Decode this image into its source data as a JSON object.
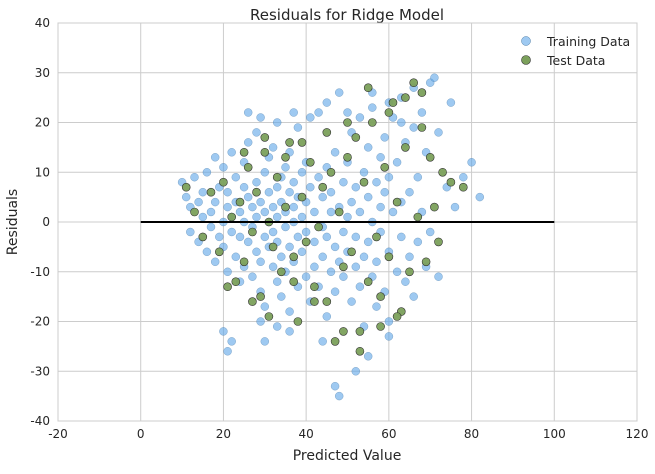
{
  "chart_data": {
    "type": "scatter",
    "title": "Residuals for Ridge Model",
    "xlabel": "Predicted Value",
    "ylabel": "Residuals",
    "xlim": [
      -20,
      120
    ],
    "ylim": [
      -40,
      40
    ],
    "xticks": [
      -20,
      0,
      20,
      40,
      60,
      80,
      100,
      120
    ],
    "yticks": [
      -40,
      -30,
      -20,
      -10,
      0,
      10,
      20,
      30,
      40
    ],
    "grid": true,
    "legend_position": "top-right",
    "reference_line": {
      "y": 0,
      "x_start": 0,
      "x_end": 100,
      "color": "#000000"
    },
    "series": [
      {
        "name": "Training Data",
        "color": "#5DA5E8",
        "points": [
          [
            10,
            8
          ],
          [
            11,
            5
          ],
          [
            12,
            3
          ],
          [
            12,
            -2
          ],
          [
            13,
            9
          ],
          [
            14,
            4
          ],
          [
            14,
            -4
          ],
          [
            15,
            1
          ],
          [
            15,
            6
          ],
          [
            16,
            -6
          ],
          [
            16,
            10
          ],
          [
            17,
            2
          ],
          [
            17,
            -1
          ],
          [
            18,
            13
          ],
          [
            18,
            -8
          ],
          [
            18,
            4
          ],
          [
            19,
            -3
          ],
          [
            19,
            7
          ],
          [
            20,
            0
          ],
          [
            20,
            11
          ],
          [
            20,
            -5
          ],
          [
            21,
            3
          ],
          [
            21,
            -10
          ],
          [
            21,
            6
          ],
          [
            22,
            -2
          ],
          [
            22,
            14
          ],
          [
            22,
            1
          ],
          [
            23,
            -7
          ],
          [
            23,
            9
          ],
          [
            23,
            4
          ],
          [
            24,
            -12
          ],
          [
            24,
            2
          ],
          [
            24,
            -3
          ],
          [
            25,
            7
          ],
          [
            25,
            -9
          ],
          [
            25,
            12
          ],
          [
            25,
            0
          ],
          [
            26,
            -4
          ],
          [
            26,
            5
          ],
          [
            26,
            16
          ],
          [
            27,
            -11
          ],
          [
            27,
            3
          ],
          [
            27,
            -1
          ],
          [
            28,
            8
          ],
          [
            28,
            -6
          ],
          [
            28,
            1
          ],
          [
            28,
            18
          ],
          [
            29,
            -14
          ],
          [
            29,
            4
          ],
          [
            29,
            -8
          ],
          [
            30,
            10
          ],
          [
            30,
            -3
          ],
          [
            30,
            2
          ],
          [
            30,
            -17
          ],
          [
            31,
            6
          ],
          [
            31,
            -5
          ],
          [
            31,
            13
          ],
          [
            31,
            0
          ],
          [
            32,
            -9
          ],
          [
            32,
            3
          ],
          [
            32,
            -2
          ],
          [
            32,
            15
          ],
          [
            33,
            -12
          ],
          [
            33,
            7
          ],
          [
            33,
            -4
          ],
          [
            33,
            1
          ],
          [
            34,
            9
          ],
          [
            34,
            -7
          ],
          [
            34,
            -15
          ],
          [
            34,
            4
          ],
          [
            35,
            -1
          ],
          [
            35,
            11
          ],
          [
            35,
            -10
          ],
          [
            35,
            2
          ],
          [
            36,
            6
          ],
          [
            36,
            -5
          ],
          [
            36,
            -18
          ],
          [
            36,
            14
          ],
          [
            37,
            0
          ],
          [
            37,
            -8
          ],
          [
            37,
            3
          ],
          [
            37,
            8
          ],
          [
            38,
            -13
          ],
          [
            38,
            5
          ],
          [
            38,
            -3
          ],
          [
            38,
            19
          ],
          [
            39,
            -6
          ],
          [
            39,
            10
          ],
          [
            39,
            1
          ],
          [
            40,
            -11
          ],
          [
            40,
            4
          ],
          [
            40,
            -2
          ],
          [
            40,
            12
          ],
          [
            41,
            -16
          ],
          [
            41,
            7
          ],
          [
            42,
            -4
          ],
          [
            42,
            2
          ],
          [
            42,
            -9
          ],
          [
            43,
            9
          ],
          [
            43,
            -13
          ],
          [
            43,
            22
          ],
          [
            44,
            -1
          ],
          [
            44,
            5
          ],
          [
            44,
            -7
          ],
          [
            45,
            11
          ],
          [
            45,
            -3
          ],
          [
            45,
            -19
          ],
          [
            46,
            6
          ],
          [
            46,
            -10
          ],
          [
            46,
            2
          ],
          [
            47,
            -5
          ],
          [
            47,
            14
          ],
          [
            47,
            -14
          ],
          [
            48,
            3
          ],
          [
            48,
            -8
          ],
          [
            48,
            26
          ],
          [
            49,
            8
          ],
          [
            49,
            -2
          ],
          [
            49,
            -11
          ],
          [
            50,
            12
          ],
          [
            50,
            -6
          ],
          [
            50,
            1
          ],
          [
            51,
            -16
          ],
          [
            51,
            18
          ],
          [
            51,
            4
          ],
          [
            52,
            -9
          ],
          [
            52,
            7
          ],
          [
            52,
            -3
          ],
          [
            53,
            21
          ],
          [
            53,
            -13
          ],
          [
            53,
            2
          ],
          [
            54,
            10
          ],
          [
            54,
            -7
          ],
          [
            54,
            -21
          ],
          [
            55,
            5
          ],
          [
            55,
            15
          ],
          [
            55,
            -4
          ],
          [
            56,
            -11
          ],
          [
            56,
            0
          ],
          [
            56,
            23
          ],
          [
            57,
            8
          ],
          [
            57,
            -8
          ],
          [
            57,
            -17
          ],
          [
            58,
            3
          ],
          [
            58,
            13
          ],
          [
            58,
            -2
          ],
          [
            59,
            -14
          ],
          [
            59,
            17
          ],
          [
            59,
            6
          ],
          [
            60,
            -6
          ],
          [
            60,
            9
          ],
          [
            60,
            -20
          ],
          [
            61,
            2
          ],
          [
            61,
            21
          ],
          [
            62,
            -10
          ],
          [
            62,
            12
          ],
          [
            63,
            4
          ],
          [
            63,
            -3
          ],
          [
            63,
            25
          ],
          [
            64,
            -12
          ],
          [
            64,
            16
          ],
          [
            65,
            6
          ],
          [
            65,
            -7
          ],
          [
            66,
            19
          ],
          [
            66,
            -15
          ],
          [
            67,
            9
          ],
          [
            67,
            -4
          ],
          [
            68,
            22
          ],
          [
            68,
            2
          ],
          [
            69,
            -9
          ],
          [
            69,
            14
          ],
          [
            70,
            28
          ],
          [
            70,
            -2
          ],
          [
            72,
            18
          ],
          [
            72,
            -11
          ],
          [
            74,
            7
          ],
          [
            75,
            24
          ],
          [
            76,
            3
          ],
          [
            78,
            9
          ],
          [
            80,
            12
          ],
          [
            82,
            5
          ],
          [
            20,
            -22
          ],
          [
            21,
            -26
          ],
          [
            22,
            -24
          ],
          [
            29,
            -20
          ],
          [
            30,
            -24
          ],
          [
            33,
            -21
          ],
          [
            36,
            -22
          ],
          [
            44,
            -24
          ],
          [
            47,
            -33
          ],
          [
            48,
            -35
          ],
          [
            52,
            -30
          ],
          [
            55,
            -27
          ],
          [
            60,
            -23
          ],
          [
            26,
            22
          ],
          [
            29,
            21
          ],
          [
            33,
            20
          ],
          [
            37,
            22
          ],
          [
            41,
            21
          ],
          [
            45,
            24
          ],
          [
            50,
            22
          ],
          [
            56,
            26
          ],
          [
            60,
            24
          ],
          [
            63,
            20
          ],
          [
            66,
            27
          ],
          [
            71,
            29
          ]
        ]
      },
      {
        "name": "Test Data",
        "color": "#7BA05B",
        "points": [
          [
            11,
            7
          ],
          [
            13,
            2
          ],
          [
            15,
            -3
          ],
          [
            17,
            6
          ],
          [
            19,
            -6
          ],
          [
            20,
            8
          ],
          [
            22,
            1
          ],
          [
            23,
            -12
          ],
          [
            24,
            4
          ],
          [
            25,
            -8
          ],
          [
            26,
            11
          ],
          [
            27,
            -2
          ],
          [
            28,
            6
          ],
          [
            29,
            -15
          ],
          [
            30,
            14
          ],
          [
            31,
            0
          ],
          [
            32,
            -5
          ],
          [
            33,
            9
          ],
          [
            34,
            -10
          ],
          [
            35,
            3
          ],
          [
            36,
            16
          ],
          [
            37,
            -7
          ],
          [
            38,
            -20
          ],
          [
            39,
            5
          ],
          [
            40,
            -4
          ],
          [
            41,
            12
          ],
          [
            42,
            -13
          ],
          [
            43,
            -1
          ],
          [
            44,
            7
          ],
          [
            45,
            -16
          ],
          [
            46,
            10
          ],
          [
            47,
            -24
          ],
          [
            48,
            2
          ],
          [
            49,
            -9
          ],
          [
            50,
            13
          ],
          [
            51,
            -6
          ],
          [
            52,
            17
          ],
          [
            53,
            -22
          ],
          [
            54,
            8
          ],
          [
            55,
            -12
          ],
          [
            56,
            20
          ],
          [
            57,
            -3
          ],
          [
            58,
            -15
          ],
          [
            59,
            11
          ],
          [
            60,
            -7
          ],
          [
            61,
            24
          ],
          [
            62,
            4
          ],
          [
            63,
            -18
          ],
          [
            64,
            15
          ],
          [
            65,
            -10
          ],
          [
            66,
            28
          ],
          [
            67,
            1
          ],
          [
            68,
            19
          ],
          [
            69,
            -8
          ],
          [
            70,
            13
          ],
          [
            71,
            3
          ],
          [
            72,
            -4
          ],
          [
            73,
            10
          ],
          [
            75,
            8
          ],
          [
            78,
            7
          ],
          [
            21,
            -13
          ],
          [
            27,
            -16
          ],
          [
            31,
            -19
          ],
          [
            37,
            -12
          ],
          [
            42,
            -16
          ],
          [
            49,
            -22
          ],
          [
            53,
            -26
          ],
          [
            58,
            -21
          ],
          [
            62,
            -19
          ],
          [
            25,
            14
          ],
          [
            30,
            17
          ],
          [
            35,
            13
          ],
          [
            39,
            16
          ],
          [
            45,
            18
          ],
          [
            50,
            20
          ],
          [
            55,
            27
          ],
          [
            60,
            22
          ],
          [
            64,
            25
          ],
          [
            68,
            26
          ]
        ]
      }
    ]
  }
}
